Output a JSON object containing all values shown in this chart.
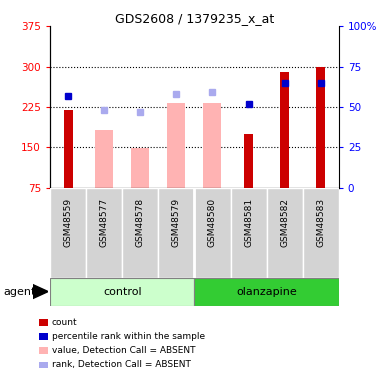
{
  "title": "GDS2608 / 1379235_x_at",
  "samples": [
    "GSM48559",
    "GSM48577",
    "GSM48578",
    "GSM48579",
    "GSM48580",
    "GSM48581",
    "GSM48582",
    "GSM48583"
  ],
  "groups": [
    "control",
    "control",
    "control",
    "control",
    "olanzapine",
    "olanzapine",
    "olanzapine",
    "olanzapine"
  ],
  "count_present": [
    220,
    null,
    null,
    null,
    null,
    175,
    290,
    300
  ],
  "pink_bar_values": [
    null,
    182,
    148,
    232,
    232,
    null,
    null,
    null
  ],
  "percentile_present": [
    57,
    null,
    null,
    null,
    null,
    52,
    65,
    65
  ],
  "lightblue_rank_absent": [
    null,
    48,
    47,
    58,
    59,
    null,
    null,
    null
  ],
  "ylim": [
    75,
    375
  ],
  "y2lim": [
    0,
    100
  ],
  "yticks": [
    75,
    150,
    225,
    300,
    375
  ],
  "y2ticks": [
    0,
    25,
    50,
    75,
    100
  ],
  "grid_lines": [
    150,
    225,
    300
  ],
  "bar_color": "#cc0000",
  "pink_color": "#ffb3b3",
  "blue_color": "#0000cc",
  "lightblue_color": "#aaaaee",
  "gray_box_color": "#d3d3d3",
  "control_color_light": "#ccffcc",
  "control_color_dark": "#44cc44",
  "olanzapine_color": "#33cc33",
  "legend_items": [
    "count",
    "percentile rank within the sample",
    "value, Detection Call = ABSENT",
    "rank, Detection Call = ABSENT"
  ],
  "legend_colors": [
    "#cc0000",
    "#0000cc",
    "#ffb3b3",
    "#aaaaee"
  ]
}
